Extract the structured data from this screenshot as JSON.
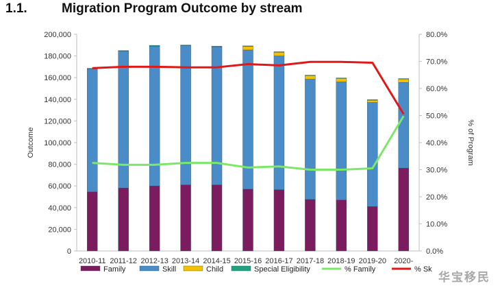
{
  "heading": {
    "number": "1.1.",
    "title": "Migration Program Outcome by stream"
  },
  "chart_data": {
    "type": "bar",
    "stacked": true,
    "categories": [
      "2010-11",
      "2011-12",
      "2012-13",
      "2013-14",
      "2014-15",
      "2015-16",
      "2016-17",
      "2017-18",
      "2018-19",
      "2019-20",
      "2020-"
    ],
    "series": [
      {
        "name": "Family",
        "color": "#7B1C5E",
        "values": [
          54500,
          58000,
          60000,
          61000,
          61000,
          57000,
          56500,
          47500,
          47000,
          41000,
          76500
        ]
      },
      {
        "name": "Skill",
        "color": "#4A8CC7",
        "values": [
          113500,
          126500,
          129000,
          128500,
          127500,
          128500,
          123500,
          111000,
          109000,
          96000,
          79000
        ]
      },
      {
        "name": "Child",
        "color": "#F2C200",
        "values": [
          0,
          0,
          0,
          0,
          0,
          3500,
          3500,
          3500,
          3500,
          2500,
          3500
        ]
      },
      {
        "name": "Special Eligibility",
        "color": "#1FA37F",
        "values": [
          600,
          500,
          800,
          600,
          500,
          300,
          400,
          300,
          200,
          100,
          100
        ]
      }
    ],
    "line_series": [
      {
        "name": "% Family",
        "color": "#7CE86A",
        "axis": "right",
        "values": [
          32.5,
          31.8,
          31.8,
          32.5,
          32.5,
          30.8,
          31.2,
          30.0,
          30.0,
          30.5,
          49.8
        ]
      },
      {
        "name": "% Skill",
        "color": "#E01818",
        "axis": "right",
        "values": [
          67.5,
          68.0,
          68.0,
          67.8,
          67.8,
          69.0,
          68.5,
          69.8,
          69.8,
          69.5,
          50.5
        ]
      }
    ],
    "ylabel": "Outcome",
    "ylim": [
      0,
      200000
    ],
    "yticks": [
      "0",
      "20,000",
      "40,000",
      "60,000",
      "80,000",
      "100,000",
      "120,000",
      "140,000",
      "160,000",
      "180,000",
      "200,000"
    ],
    "y2label": "% of Program",
    "y2lim": [
      0,
      80
    ],
    "y2ticks": [
      "0.0%",
      "10.0%",
      "20.0%",
      "30.0%",
      "40.0%",
      "50.0%",
      "60.0%",
      "70.0%",
      "80.0%"
    ],
    "legend": [
      "Family",
      "Skill",
      "Child",
      "Special Eligibility",
      "% Family",
      "% Sk"
    ],
    "legend_position": "bottom",
    "grid": false
  },
  "watermark": "华宝移民"
}
